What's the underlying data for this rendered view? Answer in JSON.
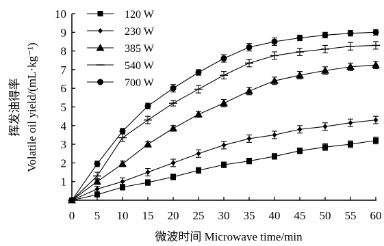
{
  "chart_data": {
    "type": "line",
    "xlabel": "微波时间 Microwave time/min",
    "ylabel_line1": "挥发油得率",
    "ylabel_line2": "Volatile oil yield/(mL·kg⁻¹)",
    "xlim": [
      0,
      60
    ],
    "ylim": [
      0,
      10
    ],
    "x_ticks": [
      0,
      5,
      10,
      15,
      20,
      25,
      30,
      35,
      40,
      45,
      50,
      55,
      60
    ],
    "y_ticks": [
      1,
      2,
      3,
      4,
      5,
      6,
      7,
      8,
      9,
      10
    ],
    "grid": false,
    "legend_position": "top-left",
    "error_bars": true,
    "x": [
      0,
      5,
      10,
      15,
      20,
      25,
      30,
      35,
      40,
      45,
      50,
      55,
      60
    ],
    "series": [
      {
        "name": "120 W",
        "marker": "square",
        "values": [
          0,
          0.3,
          0.7,
          0.95,
          1.25,
          1.6,
          1.9,
          2.1,
          2.35,
          2.65,
          2.85,
          3.0,
          3.2
        ],
        "errors": [
          0,
          0.12,
          0.15,
          0.15,
          0.15,
          0.15,
          0.15,
          0.15,
          0.15,
          0.15,
          0.18,
          0.18,
          0.18
        ]
      },
      {
        "name": "230 W",
        "marker": "diamond",
        "values": [
          0,
          0.6,
          1.0,
          1.5,
          2.0,
          2.5,
          2.95,
          3.3,
          3.5,
          3.8,
          3.95,
          4.15,
          4.3
        ],
        "errors": [
          0,
          0.15,
          0.2,
          0.2,
          0.2,
          0.2,
          0.2,
          0.2,
          0.2,
          0.2,
          0.2,
          0.2,
          0.2
        ]
      },
      {
        "name": "385 W",
        "marker": "triangle",
        "values": [
          0,
          1.0,
          1.95,
          3.0,
          3.85,
          4.6,
          5.2,
          5.85,
          6.4,
          6.7,
          6.95,
          7.15,
          7.25
        ],
        "errors": [
          0,
          0.15,
          0.15,
          0.15,
          0.15,
          0.15,
          0.2,
          0.2,
          0.2,
          0.2,
          0.2,
          0.2,
          0.2
        ]
      },
      {
        "name": "540 W",
        "marker": "dash",
        "values": [
          0,
          1.3,
          3.35,
          4.3,
          5.2,
          5.95,
          6.7,
          7.35,
          7.75,
          7.95,
          8.1,
          8.25,
          8.3
        ],
        "errors": [
          0,
          0.2,
          0.2,
          0.2,
          0.15,
          0.2,
          0.2,
          0.2,
          0.2,
          0.2,
          0.2,
          0.2,
          0.2
        ]
      },
      {
        "name": "700 W",
        "marker": "circle",
        "values": [
          0,
          1.95,
          3.7,
          5.05,
          6.0,
          6.85,
          7.6,
          8.2,
          8.5,
          8.7,
          8.85,
          8.95,
          9.0
        ],
        "errors": [
          0,
          0.15,
          0.15,
          0.15,
          0.2,
          0.15,
          0.2,
          0.2,
          0.2,
          0.15,
          0.15,
          0.15,
          0.15
        ]
      }
    ]
  }
}
